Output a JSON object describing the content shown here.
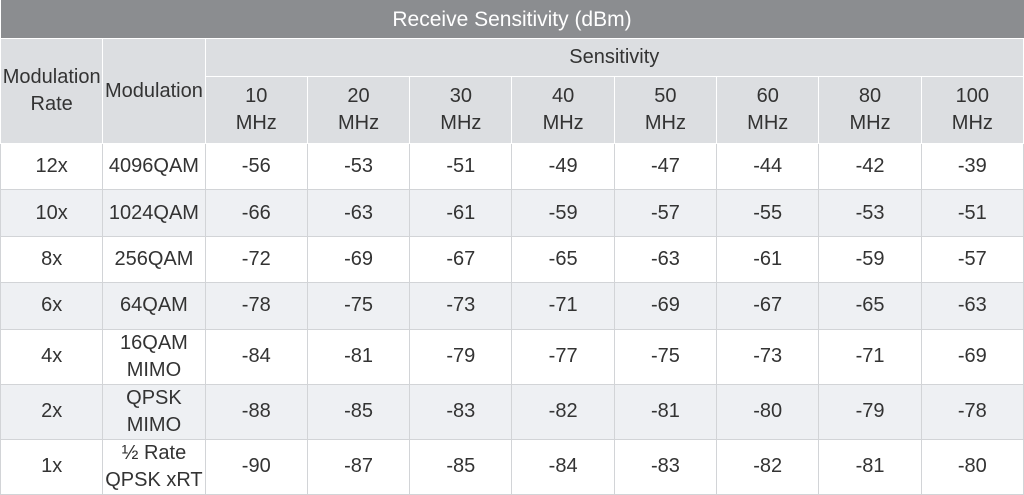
{
  "title": "Receive Sensitivity (dBm)",
  "header": {
    "rate": "Modulation\nRate",
    "modulation": "Modulation",
    "sensitivity": "Sensitivity",
    "bandwidths": [
      "10\nMHz",
      "20\nMHz",
      "30\nMHz",
      "40\nMHz",
      "50\nMHz",
      "60\nMHz",
      "80\nMHz",
      "100\nMHz"
    ]
  },
  "rows": [
    {
      "rate": "12x",
      "modulation": "4096QAM",
      "values": [
        -56,
        -53,
        -51,
        -49,
        -47,
        -44,
        -42,
        -39
      ]
    },
    {
      "rate": "10x",
      "modulation": "1024QAM",
      "values": [
        -66,
        -63,
        -61,
        -59,
        -57,
        -55,
        -53,
        -51
      ]
    },
    {
      "rate": "8x",
      "modulation": "256QAM",
      "values": [
        -72,
        -69,
        -67,
        -65,
        -63,
        -61,
        -59,
        -57
      ]
    },
    {
      "rate": "6x",
      "modulation": "64QAM",
      "values": [
        -78,
        -75,
        -73,
        -71,
        -69,
        -67,
        -65,
        -63
      ]
    },
    {
      "rate": "4x",
      "modulation": "16QAM MIMO",
      "values": [
        -84,
        -81,
        -79,
        -77,
        -75,
        -73,
        -71,
        -69
      ]
    },
    {
      "rate": "2x",
      "modulation": "QPSK MIMO",
      "values": [
        -88,
        -85,
        -83,
        -82,
        -81,
        -80,
        -79,
        -78
      ]
    },
    {
      "rate": "1x",
      "modulation": "½ Rate QPSK xRT",
      "values": [
        -90,
        -87,
        -85,
        -84,
        -83,
        -82,
        -81,
        -80
      ]
    }
  ]
}
